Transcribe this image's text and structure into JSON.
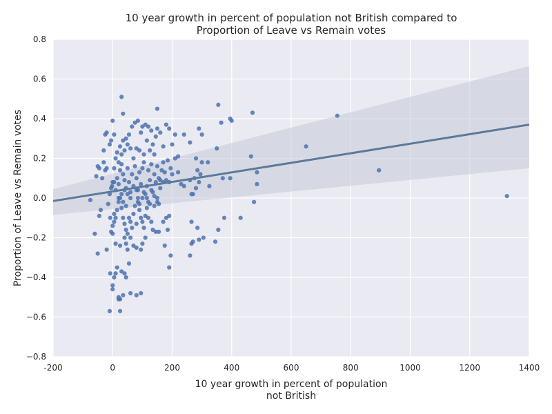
{
  "chart_data": {
    "type": "scatter",
    "title": [
      "10 year growth in percent of population not British compared to",
      "Proportion of Leave vs Remain votes"
    ],
    "xlabel": [
      "10 year growth in percent of population",
      "not British"
    ],
    "ylabel": "Proportion of Leave vs Remain votes",
    "xlim": [
      -200,
      1400
    ],
    "ylim": [
      -0.8,
      0.8
    ],
    "xticks": [
      "-200",
      "0",
      "200",
      "400",
      "600",
      "800",
      "1000",
      "1200",
      "1400"
    ],
    "yticks": [
      "0.8",
      "0.6",
      "0.4",
      "0.2",
      "0.0",
      "−0.2",
      "−0.4",
      "−0.6",
      "−0.8"
    ],
    "grid": true,
    "style": {
      "background": "#eaeaf2",
      "grid_color": "#ffffff",
      "point_color": "#4c72b0",
      "line_color": "#5b7a9a",
      "band_color": "#c5cbd9"
    },
    "regression": {
      "x": [
        -200,
        1400
      ],
      "y": [
        -0.015,
        0.37
      ],
      "ci_lower": [
        -0.085,
        0.15
      ],
      "ci_upper": [
        0.045,
        0.665
      ]
    },
    "points": [
      [
        30,
        0.51
      ],
      [
        150,
        0.45
      ],
      [
        355,
        0.47
      ],
      [
        470,
        0.43
      ],
      [
        755,
        0.415
      ],
      [
        35,
        0.425
      ],
      [
        -75,
        -0.01
      ],
      [
        -60,
        -0.18
      ],
      [
        -50,
        -0.28
      ],
      [
        -45,
        -0.09
      ],
      [
        -40,
        -0.06
      ],
      [
        -55,
        0.11
      ],
      [
        -50,
        0.16
      ],
      [
        -45,
        0.15
      ],
      [
        -35,
        0.1
      ],
      [
        -30,
        0.18
      ],
      [
        -25,
        0.14
      ],
      [
        -20,
        0.15
      ],
      [
        -30,
        0.24
      ],
      [
        -25,
        0.32
      ],
      [
        -20,
        0.33
      ],
      [
        -10,
        0.27
      ],
      [
        -5,
        0.29
      ],
      [
        0,
        0.39
      ],
      [
        5,
        0.32
      ],
      [
        -15,
        -0.03
      ],
      [
        -10,
        0.02
      ],
      [
        -5,
        0.05
      ],
      [
        0,
        0.08
      ],
      [
        5,
        0.08
      ],
      [
        -2,
        0.06
      ],
      [
        -8,
        -0.1
      ],
      [
        -5,
        -0.17
      ],
      [
        0,
        -0.18
      ],
      [
        0,
        -0.14
      ],
      [
        5,
        -0.12
      ],
      [
        10,
        -0.23
      ],
      [
        -20,
        -0.26
      ],
      [
        -10,
        -0.57
      ],
      [
        -8,
        -0.38
      ],
      [
        0,
        -0.44
      ],
      [
        0,
        -0.46
      ],
      [
        5,
        -0.4
      ],
      [
        10,
        -0.38
      ],
      [
        15,
        -0.35
      ],
      [
        20,
        -0.5
      ],
      [
        25,
        -0.51
      ],
      [
        20,
        -0.51
      ],
      [
        25,
        -0.57
      ],
      [
        35,
        -0.49
      ],
      [
        60,
        -0.48
      ],
      [
        80,
        -0.49
      ],
      [
        95,
        -0.48
      ],
      [
        30,
        -0.37
      ],
      [
        40,
        -0.38
      ],
      [
        45,
        -0.4
      ],
      [
        55,
        -0.33
      ],
      [
        40,
        -0.2
      ],
      [
        45,
        -0.23
      ],
      [
        50,
        -0.26
      ],
      [
        60,
        -0.2
      ],
      [
        70,
        -0.24
      ],
      [
        80,
        -0.25
      ],
      [
        95,
        -0.26
      ],
      [
        100,
        -0.23
      ],
      [
        110,
        -0.2
      ],
      [
        25,
        -0.24
      ],
      [
        5,
        -0.08
      ],
      [
        10,
        -0.1
      ],
      [
        15,
        -0.06
      ],
      [
        20,
        -0.02
      ],
      [
        25,
        0.0
      ],
      [
        30,
        -0.05
      ],
      [
        35,
        -0.1
      ],
      [
        40,
        -0.13
      ],
      [
        45,
        -0.16
      ],
      [
        50,
        -0.18
      ],
      [
        55,
        -0.1
      ],
      [
        60,
        -0.12
      ],
      [
        65,
        -0.15
      ],
      [
        70,
        -0.08
      ],
      [
        75,
        -0.04
      ],
      [
        80,
        -0.13
      ],
      [
        85,
        -0.02
      ],
      [
        90,
        -0.06
      ],
      [
        95,
        -0.1
      ],
      [
        100,
        -0.12
      ],
      [
        105,
        -0.15
      ],
      [
        110,
        -0.09
      ],
      [
        115,
        -0.05
      ],
      [
        120,
        -0.1
      ],
      [
        125,
        -0.03
      ],
      [
        130,
        -0.12
      ],
      [
        135,
        -0.16
      ],
      [
        140,
        -0.04
      ],
      [
        145,
        -0.17
      ],
      [
        150,
        -0.02
      ],
      [
        155,
        -0.03
      ],
      [
        10,
        0.04
      ],
      [
        15,
        0.1
      ],
      [
        20,
        0.07
      ],
      [
        25,
        0.14
      ],
      [
        30,
        0.17
      ],
      [
        35,
        0.12
      ],
      [
        40,
        0.09
      ],
      [
        45,
        0.05
      ],
      [
        50,
        0.15
      ],
      [
        55,
        0.08
      ],
      [
        60,
        0.03
      ],
      [
        65,
        0.12
      ],
      [
        70,
        0.06
      ],
      [
        75,
        0.16
      ],
      [
        80,
        0.1
      ],
      [
        85,
        0.04
      ],
      [
        90,
        0.13
      ],
      [
        95,
        0.07
      ],
      [
        100,
        0.15
      ],
      [
        105,
        0.18
      ],
      [
        110,
        0.02
      ],
      [
        115,
        0.06
      ],
      [
        120,
        0.14
      ],
      [
        125,
        0.09
      ],
      [
        130,
        0.17
      ],
      [
        135,
        0.03
      ],
      [
        140,
        0.12
      ],
      [
        145,
        0.08
      ],
      [
        150,
        0.16
      ],
      [
        155,
        0.1
      ],
      [
        160,
        0.05
      ],
      [
        165,
        0.14
      ],
      [
        170,
        0.18
      ],
      [
        175,
        0.13
      ],
      [
        180,
        0.09
      ],
      [
        185,
        0.19
      ],
      [
        190,
        0.08
      ],
      [
        195,
        0.15
      ],
      [
        200,
        0.12
      ],
      [
        210,
        0.2
      ],
      [
        220,
        0.13
      ],
      [
        230,
        0.07
      ],
      [
        5,
        0.15
      ],
      [
        10,
        0.2
      ],
      [
        15,
        0.23
      ],
      [
        20,
        0.18
      ],
      [
        25,
        0.26
      ],
      [
        30,
        0.22
      ],
      [
        35,
        0.29
      ],
      [
        40,
        0.24
      ],
      [
        45,
        0.3
      ],
      [
        50,
        0.27
      ],
      [
        55,
        0.32
      ],
      [
        60,
        0.25
      ],
      [
        65,
        0.36
      ],
      [
        70,
        0.2
      ],
      [
        75,
        0.38
      ],
      [
        80,
        0.25
      ],
      [
        85,
        0.39
      ],
      [
        90,
        0.24
      ],
      [
        95,
        0.33
      ],
      [
        100,
        0.36
      ],
      [
        105,
        0.22
      ],
      [
        110,
        0.37
      ],
      [
        115,
        0.29
      ],
      [
        120,
        0.36
      ],
      [
        125,
        0.24
      ],
      [
        130,
        0.34
      ],
      [
        135,
        0.27
      ],
      [
        140,
        0.22
      ],
      [
        145,
        0.31
      ],
      [
        150,
        0.35
      ],
      [
        160,
        0.33
      ],
      [
        170,
        0.26
      ],
      [
        180,
        0.37
      ],
      [
        190,
        0.35
      ],
      [
        200,
        0.27
      ],
      [
        210,
        0.32
      ],
      [
        220,
        0.21
      ],
      [
        240,
        0.32
      ],
      [
        260,
        0.28
      ],
      [
        280,
        0.2
      ],
      [
        290,
        0.35
      ],
      [
        300,
        0.32
      ],
      [
        320,
        0.18
      ],
      [
        350,
        0.25
      ],
      [
        365,
        0.38
      ],
      [
        395,
        0.4
      ],
      [
        400,
        0.39
      ],
      [
        465,
        0.21
      ],
      [
        485,
        0.13
      ],
      [
        485,
        0.07
      ],
      [
        650,
        0.26
      ],
      [
        895,
        0.14
      ],
      [
        1325,
        0.01
      ],
      [
        240,
        0.06
      ],
      [
        260,
        0.09
      ],
      [
        265,
        0.02
      ],
      [
        270,
        0.02
      ],
      [
        275,
        0.1
      ],
      [
        280,
        0.05
      ],
      [
        285,
        0.14
      ],
      [
        290,
        0.08
      ],
      [
        295,
        0.12
      ],
      [
        300,
        0.18
      ],
      [
        325,
        0.06
      ],
      [
        370,
        0.1
      ],
      [
        395,
        0.1
      ],
      [
        265,
        -0.12
      ],
      [
        265,
        -0.23
      ],
      [
        270,
        -0.22
      ],
      [
        285,
        -0.15
      ],
      [
        290,
        -0.21
      ],
      [
        305,
        -0.2
      ],
      [
        345,
        -0.22
      ],
      [
        355,
        -0.16
      ],
      [
        375,
        -0.1
      ],
      [
        430,
        -0.1
      ],
      [
        475,
        -0.02
      ],
      [
        175,
        -0.24
      ],
      [
        185,
        -0.16
      ],
      [
        190,
        -0.35
      ],
      [
        195,
        -0.29
      ],
      [
        260,
        -0.29
      ],
      [
        155,
        -0.17
      ],
      [
        170,
        -0.12
      ],
      [
        180,
        -0.1
      ],
      [
        190,
        -0.09
      ],
      [
        80,
        0.04
      ],
      [
        85,
        0.0
      ],
      [
        90,
        -0.03
      ],
      [
        100,
        0.0
      ],
      [
        105,
        0.03
      ],
      [
        115,
        0.0
      ],
      [
        120,
        -0.02
      ],
      [
        130,
        0.04
      ],
      [
        140,
        0.01
      ],
      [
        150,
        0.0
      ],
      [
        160,
        0.09
      ],
      [
        170,
        0.08
      ],
      [
        60,
        0.0
      ],
      [
        50,
        0.02
      ],
      [
        40,
        0.04
      ],
      [
        30,
        0.02
      ],
      [
        20,
        0.0
      ],
      [
        35,
        -0.02
      ],
      [
        45,
        -0.04
      ]
    ]
  }
}
